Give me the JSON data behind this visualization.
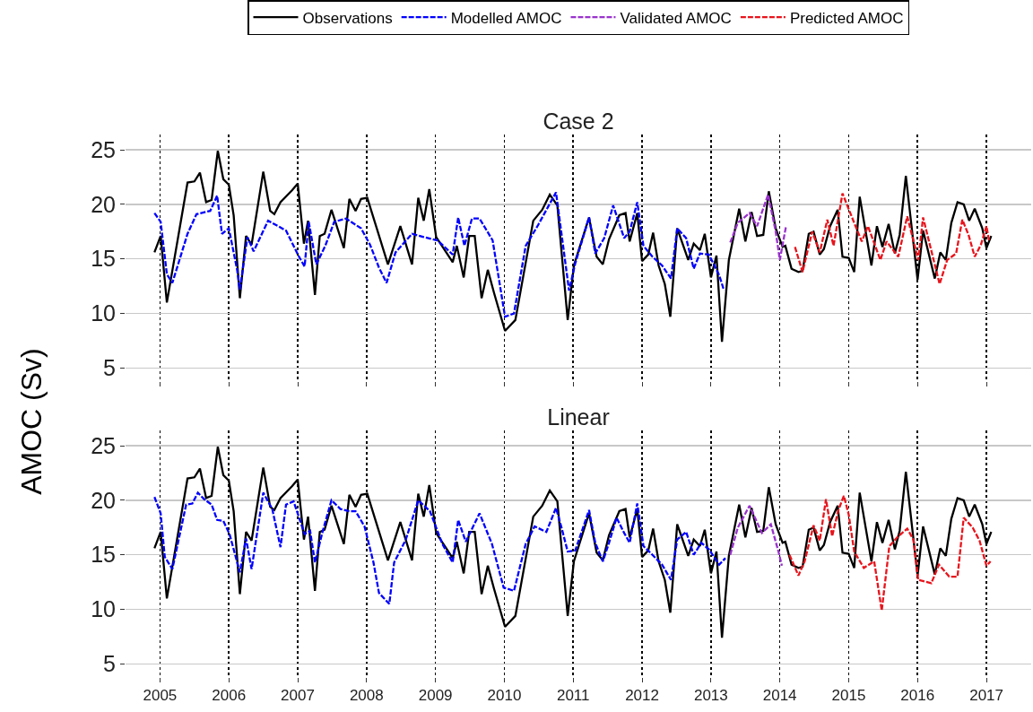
{
  "chart_data": [
    {
      "type": "line",
      "title": "Case 2",
      "ylabel": "AMOC (Sv)",
      "xlim": [
        2004.5,
        2017.65
      ],
      "xticks": [
        2005,
        2006,
        2007,
        2008,
        2009,
        2010,
        2011,
        2012,
        2013,
        2014,
        2015,
        2016,
        2017
      ],
      "ylim": [
        3.8,
        26.4
      ],
      "yticks": [
        5,
        10,
        15,
        20,
        25
      ],
      "grid": true,
      "legend": "top",
      "tick_labels": "y",
      "series": [
        {
          "name": "Observations",
          "color": "#000000",
          "line_style": "solid",
          "x": [
            2004.92,
            2005.01,
            2005.1,
            2005.4,
            2005.5,
            2005.58,
            2005.67,
            2005.75,
            2005.84,
            2005.92,
            2006.0,
            2006.07,
            2006.16,
            2006.25,
            2006.33,
            2006.5,
            2006.6,
            2006.66,
            2006.75,
            2006.92,
            2007.0,
            2007.09,
            2007.15,
            2007.25,
            2007.32,
            2007.39,
            2007.49,
            2007.67,
            2007.75,
            2007.84,
            2007.92,
            2008.01,
            2008.31,
            2008.49,
            2008.66,
            2008.75,
            2008.83,
            2008.91,
            2009.01,
            2009.25,
            2009.31,
            2009.41,
            2009.49,
            2009.57,
            2009.67,
            2009.76,
            2009.85,
            2010.01,
            2010.16,
            2010.42,
            2010.55,
            2010.66,
            2010.77,
            2010.92,
            2011.01,
            2011.23,
            2011.34,
            2011.43,
            2011.52,
            2011.67,
            2011.76,
            2011.82,
            2011.93,
            2012.0,
            2012.09,
            2012.16,
            2012.24,
            2012.33,
            2012.41,
            2012.51,
            2012.67,
            2012.75,
            2012.84,
            2012.91,
            2013.0,
            2013.08,
            2013.16,
            2013.26,
            2013.41,
            2013.5,
            2013.59,
            2013.67,
            2013.76,
            2013.84,
            2013.94,
            2014.04,
            2014.08,
            2014.17,
            2014.27,
            2014.33,
            2014.42,
            2014.49,
            2014.58,
            2014.64,
            2014.73,
            2014.84,
            2014.91,
            2015.0,
            2015.08,
            2015.16,
            2015.33,
            2015.41,
            2015.49,
            2015.58,
            2015.67,
            2015.74,
            2015.83,
            2016.0,
            2016.08,
            2016.25,
            2016.33,
            2016.41,
            2016.49,
            2016.58,
            2016.67,
            2016.75,
            2016.83,
            2016.94,
            2017.0,
            2017.07
          ],
          "values": [
            15.6,
            17.1,
            11.0,
            22.0,
            22.1,
            22.9,
            20.2,
            20.4,
            24.9,
            22.3,
            21.8,
            19.0,
            11.4,
            17.1,
            16.3,
            23.0,
            19.4,
            19.1,
            20.2,
            21.3,
            21.9,
            16.4,
            18.5,
            11.7,
            17.1,
            17.3,
            19.5,
            16.0,
            20.5,
            19.4,
            20.5,
            20.6,
            14.5,
            18.0,
            14.5,
            20.6,
            18.5,
            21.4,
            17.0,
            14.7,
            16.2,
            13.3,
            17.1,
            17.1,
            11.4,
            14.0,
            11.9,
            8.4,
            9.4,
            18.5,
            19.5,
            20.9,
            19.9,
            9.4,
            14.4,
            18.8,
            15.2,
            14.5,
            16.8,
            19.0,
            19.2,
            16.6,
            19.2,
            14.8,
            15.4,
            17.4,
            14.4,
            12.7,
            9.7,
            17.8,
            14.9,
            16.4,
            15.8,
            17.3,
            13.3,
            15.3,
            7.4,
            14.9,
            19.6,
            16.6,
            19.3,
            17.1,
            17.2,
            21.2,
            17.8,
            16.1,
            16.2,
            14.1,
            13.8,
            13.9,
            17.3,
            17.5,
            15.4,
            15.9,
            18.0,
            19.5,
            15.2,
            15.1,
            13.8,
            20.7,
            14.4,
            18.0,
            16.1,
            18.2,
            15.5,
            17.2,
            22.6,
            13.1,
            17.6,
            13.2,
            15.6,
            14.9,
            18.3,
            20.2,
            20.0,
            18.5,
            19.6,
            17.8,
            16.0,
            17.1
          ]
        },
        {
          "name": "Modelled AMOC",
          "color": "#0000ff",
          "line_style": "dashed",
          "x": [
            2004.92,
            2005.01,
            2005.1,
            2005.18,
            2005.4,
            2005.53,
            2005.73,
            2005.83,
            2005.9,
            2006.0,
            2006.12,
            2006.16,
            2006.27,
            2006.36,
            2006.57,
            2006.83,
            2007.01,
            2007.1,
            2007.16,
            2007.27,
            2007.4,
            2007.53,
            2007.7,
            2007.92,
            2008.05,
            2008.18,
            2008.29,
            2008.42,
            2008.66,
            2008.83,
            2009.03,
            2009.25,
            2009.33,
            2009.42,
            2009.53,
            2009.64,
            2009.83,
            2010.01,
            2010.14,
            2010.31,
            2010.49,
            2010.75,
            2010.94,
            2011.03,
            2011.14,
            2011.23,
            2011.32,
            2011.45,
            2011.58,
            2011.74,
            2011.82,
            2011.93,
            2012.02,
            2012.15,
            2012.29,
            2012.42,
            2012.51,
            2012.64,
            2012.75,
            2012.84,
            2012.97,
            2013.12,
            2013.19
          ],
          "values": [
            19.2,
            18.4,
            13.6,
            12.8,
            17.3,
            19.1,
            19.4,
            20.8,
            17.3,
            17.8,
            14.0,
            12.2,
            17.0,
            15.7,
            18.5,
            17.6,
            15.3,
            14.3,
            18.4,
            14.5,
            16.2,
            18.4,
            18.7,
            17.8,
            16.3,
            14.2,
            12.8,
            15.6,
            17.3,
            17.0,
            16.7,
            15.4,
            18.8,
            16.2,
            18.7,
            18.7,
            16.7,
            9.7,
            10.0,
            16.2,
            18.1,
            21.1,
            12.1,
            14.6,
            16.9,
            18.8,
            15.5,
            16.9,
            19.9,
            16.9,
            17.5,
            20.2,
            16.2,
            15.2,
            14.4,
            13.2,
            17.8,
            16.9,
            14.1,
            15.5,
            15.4,
            13.5,
            12.1
          ]
        },
        {
          "name": "Validated AMOC",
          "color": "#9933cc",
          "line_style": "dashed",
          "x": [
            2013.28,
            2013.39,
            2013.56,
            2013.67,
            2013.83,
            2013.94,
            2014.0,
            2014.09
          ],
          "values": [
            16.5,
            18.3,
            19.2,
            18.0,
            20.9,
            17.5,
            14.9,
            18.0
          ]
        },
        {
          "name": "Predicted AMOC",
          "color": "#e8141c",
          "line_style": "dashed",
          "x": [
            2014.22,
            2014.33,
            2014.47,
            2014.58,
            2014.69,
            2014.78,
            2014.91,
            2015.08,
            2015.19,
            2015.28,
            2015.46,
            2015.55,
            2015.72,
            2015.85,
            2016.01,
            2016.08,
            2016.32,
            2016.43,
            2016.56,
            2016.65,
            2016.74,
            2016.83,
            2016.92,
            2017.0,
            2017.04
          ],
          "values": [
            16.1,
            13.8,
            17.5,
            15.6,
            18.6,
            16.2,
            21.0,
            18.3,
            16.6,
            18.0,
            14.9,
            16.6,
            15.2,
            18.9,
            14.9,
            18.8,
            12.7,
            14.9,
            15.5,
            18.6,
            17.2,
            15.2,
            16.3,
            18.0,
            16.6
          ]
        }
      ]
    },
    {
      "type": "line",
      "title": "Linear",
      "xlim": [
        2004.5,
        2017.65
      ],
      "xticks": [
        2005,
        2006,
        2007,
        2008,
        2009,
        2010,
        2011,
        2012,
        2013,
        2014,
        2015,
        2016,
        2017
      ],
      "ylim": [
        3.8,
        26.4
      ],
      "yticks": [
        5,
        10,
        15,
        20,
        25
      ],
      "grid": true,
      "series": [
        {
          "color": "#000000",
          "line_style": "solid",
          "x": [
            2004.92,
            2005.01,
            2005.1,
            2005.4,
            2005.5,
            2005.58,
            2005.67,
            2005.75,
            2005.84,
            2005.92,
            2006.0,
            2006.07,
            2006.16,
            2006.25,
            2006.33,
            2006.5,
            2006.6,
            2006.66,
            2006.75,
            2006.92,
            2007.0,
            2007.09,
            2007.15,
            2007.25,
            2007.32,
            2007.39,
            2007.49,
            2007.67,
            2007.75,
            2007.84,
            2007.92,
            2008.01,
            2008.31,
            2008.49,
            2008.66,
            2008.75,
            2008.83,
            2008.91,
            2009.01,
            2009.25,
            2009.31,
            2009.41,
            2009.49,
            2009.57,
            2009.67,
            2009.76,
            2009.85,
            2010.01,
            2010.16,
            2010.42,
            2010.55,
            2010.66,
            2010.77,
            2010.92,
            2011.01,
            2011.23,
            2011.34,
            2011.43,
            2011.52,
            2011.67,
            2011.76,
            2011.82,
            2011.93,
            2012.0,
            2012.09,
            2012.16,
            2012.24,
            2012.33,
            2012.41,
            2012.51,
            2012.67,
            2012.75,
            2012.84,
            2012.91,
            2013.0,
            2013.08,
            2013.16,
            2013.26,
            2013.41,
            2013.5,
            2013.59,
            2013.67,
            2013.76,
            2013.84,
            2013.94,
            2014.04,
            2014.08,
            2014.17,
            2014.27,
            2014.33,
            2014.42,
            2014.49,
            2014.58,
            2014.64,
            2014.73,
            2014.84,
            2014.91,
            2015.0,
            2015.08,
            2015.16,
            2015.33,
            2015.41,
            2015.49,
            2015.58,
            2015.67,
            2015.74,
            2015.83,
            2016.0,
            2016.08,
            2016.25,
            2016.33,
            2016.41,
            2016.49,
            2016.58,
            2016.67,
            2016.75,
            2016.83,
            2016.94,
            2017.0,
            2017.07
          ],
          "values": [
            15.6,
            17.1,
            11.0,
            22.0,
            22.1,
            22.9,
            20.2,
            20.4,
            24.9,
            22.3,
            21.8,
            19.0,
            11.4,
            17.1,
            16.3,
            23.0,
            19.4,
            19.1,
            20.2,
            21.3,
            21.9,
            16.4,
            18.5,
            11.7,
            17.1,
            17.3,
            19.5,
            16.0,
            20.5,
            19.4,
            20.5,
            20.6,
            14.5,
            18.0,
            14.5,
            20.6,
            18.5,
            21.4,
            17.0,
            14.7,
            16.2,
            13.3,
            17.1,
            17.1,
            11.4,
            14.0,
            11.9,
            8.4,
            9.4,
            18.5,
            19.5,
            20.9,
            19.9,
            9.4,
            14.4,
            18.8,
            15.2,
            14.5,
            16.8,
            19.0,
            19.2,
            16.6,
            19.2,
            14.8,
            15.4,
            17.4,
            14.4,
            12.7,
            9.7,
            17.8,
            14.9,
            16.4,
            15.8,
            17.3,
            13.3,
            15.3,
            7.4,
            14.9,
            19.6,
            16.6,
            19.3,
            17.1,
            17.2,
            21.2,
            17.8,
            16.1,
            16.2,
            14.1,
            13.8,
            13.9,
            17.3,
            17.5,
            15.4,
            15.9,
            18.0,
            19.5,
            15.2,
            15.1,
            13.8,
            20.7,
            14.4,
            18.0,
            16.1,
            18.2,
            15.5,
            17.2,
            22.6,
            13.1,
            17.6,
            13.2,
            15.6,
            14.9,
            18.3,
            20.2,
            20.0,
            18.5,
            19.6,
            17.8,
            16.0,
            17.1
          ]
        },
        {
          "color": "#0000ff",
          "line_style": "dashed",
          "x": [
            2004.92,
            2005.01,
            2005.07,
            2005.18,
            2005.38,
            2005.47,
            2005.55,
            2005.64,
            2005.75,
            2005.83,
            2005.92,
            2006.01,
            2006.16,
            2006.25,
            2006.33,
            2006.5,
            2006.63,
            2006.75,
            2006.83,
            2006.94,
            2007.1,
            2007.18,
            2007.25,
            2007.36,
            2007.49,
            2007.62,
            2007.75,
            2007.84,
            2007.97,
            2008.1,
            2008.18,
            2008.33,
            2008.4,
            2008.57,
            2008.75,
            2008.92,
            2009.1,
            2009.25,
            2009.33,
            2009.44,
            2009.64,
            2009.82,
            2009.99,
            2010.14,
            2010.31,
            2010.44,
            2010.61,
            2010.75,
            2010.83,
            2010.92,
            2011.03,
            2011.23,
            2011.32,
            2011.43,
            2011.52,
            2011.63,
            2011.74,
            2011.82,
            2011.93,
            2012.02,
            2012.15,
            2012.29,
            2012.42,
            2012.51,
            2012.64,
            2012.75,
            2012.86,
            2012.97,
            2013.12,
            2013.21
          ],
          "values": [
            20.3,
            18.8,
            14.8,
            13.7,
            19.6,
            19.7,
            20.7,
            20.1,
            19.6,
            18.2,
            18.1,
            16.9,
            13.4,
            16.5,
            13.7,
            20.7,
            19.2,
            15.7,
            19.6,
            19.9,
            16.9,
            17.2,
            14.3,
            17.1,
            20.0,
            19.2,
            19.0,
            19.0,
            17.6,
            14.3,
            11.5,
            10.5,
            14.3,
            16.4,
            20.0,
            19.0,
            16.0,
            14.3,
            18.2,
            16.2,
            18.8,
            16.0,
            12.0,
            11.7,
            16.0,
            17.6,
            17.1,
            19.3,
            17.5,
            15.3,
            15.4,
            19.1,
            16.1,
            14.4,
            16.1,
            18.4,
            17.0,
            16.1,
            19.7,
            15.8,
            15.0,
            14.1,
            12.7,
            16.4,
            17.1,
            15.0,
            16.1,
            15.5,
            14.1,
            14.7
          ]
        },
        {
          "color": "#9933cc",
          "line_style": "dashed",
          "x": [
            2013.28,
            2013.39,
            2013.56,
            2013.74,
            2013.87,
            2013.98,
            2014.03
          ],
          "values": [
            15.0,
            17.5,
            19.5,
            17.0,
            17.8,
            15.3,
            14.0
          ]
        },
        {
          "color": "#e8141c",
          "line_style": "dashed",
          "x": [
            2014.14,
            2014.27,
            2014.36,
            2014.49,
            2014.58,
            2014.67,
            2014.76,
            2014.85,
            2014.93,
            2015.0,
            2015.08,
            2015.22,
            2015.37,
            2015.48,
            2015.59,
            2015.72,
            2015.85,
            2015.94,
            2016.01,
            2016.2,
            2016.31,
            2016.46,
            2016.58,
            2016.67,
            2016.8,
            2016.9,
            2017.0,
            2017.06
          ],
          "values": [
            15.0,
            13.1,
            14.4,
            17.7,
            16.3,
            20.1,
            16.7,
            19.1,
            20.4,
            18.7,
            15.3,
            13.8,
            14.4,
            9.9,
            15.8,
            16.7,
            17.4,
            16.4,
            12.7,
            12.4,
            14.1,
            13.0,
            13.0,
            18.4,
            17.5,
            16.3,
            14.0,
            14.4
          ]
        }
      ]
    }
  ]
}
